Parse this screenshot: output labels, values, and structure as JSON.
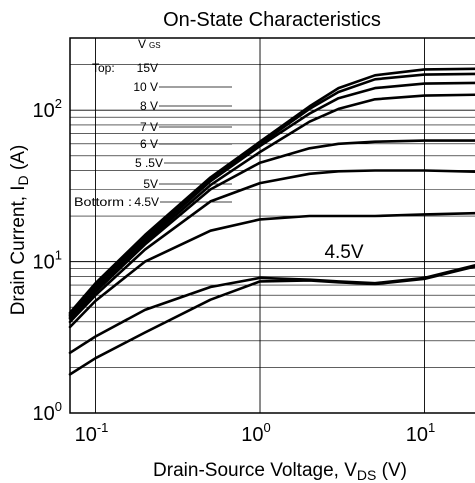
{
  "chart_data": {
    "type": "line",
    "title": "On-State Characteristics",
    "xlabel": {
      "main": "Drain-Source Voltage, V",
      "sub": "DS",
      "unit": " (V)"
    },
    "ylabel": {
      "main": "Drain Current, I",
      "sub": "D",
      "unit": " (A)"
    },
    "x_scale": "log",
    "y_scale": "log",
    "xlim": [
      0.07,
      25
    ],
    "ylim": [
      1,
      300
    ],
    "x_ticks": [
      {
        "value": 0.1,
        "base": "10",
        "exp": "-1"
      },
      {
        "value": 1,
        "base": "10",
        "exp": "0"
      },
      {
        "value": 10,
        "base": "10",
        "exp": "1"
      }
    ],
    "y_ticks": [
      {
        "value": 1,
        "base": "10",
        "exp": "0"
      },
      {
        "value": 10,
        "base": "10",
        "exp": "1"
      },
      {
        "value": 100,
        "base": "10",
        "exp": "2"
      }
    ],
    "grid": true,
    "legend": {
      "header_main": "V",
      "header_sub": "GS",
      "top_label": "Top:",
      "bottom_label": "Bottorm :",
      "entries": [
        "15V",
        "10 V",
        "8 V",
        "7 V",
        "6 V",
        "5 .5V",
        "5V",
        "4.5V"
      ]
    },
    "annotation": "4.5V",
    "series": [
      {
        "name": "15V",
        "x": [
          0.07,
          0.1,
          0.2,
          0.5,
          1,
          2,
          3,
          5,
          10,
          25
        ],
        "y": [
          4.6,
          7.2,
          15,
          36,
          62,
          106,
          140,
          170,
          186,
          188
        ]
      },
      {
        "name": "10 V",
        "x": [
          0.07,
          0.1,
          0.2,
          0.5,
          1,
          2,
          3,
          5,
          10,
          25
        ],
        "y": [
          4.5,
          7.0,
          14.5,
          35,
          60,
          102,
          132,
          160,
          172,
          174
        ]
      },
      {
        "name": "8 V",
        "x": [
          0.07,
          0.1,
          0.2,
          0.5,
          1,
          2,
          3,
          5,
          10,
          25
        ],
        "y": [
          4.4,
          6.8,
          14,
          34,
          58,
          95,
          120,
          140,
          150,
          152
        ]
      },
      {
        "name": "7 V",
        "x": [
          0.07,
          0.1,
          0.2,
          0.5,
          1,
          2,
          3,
          5,
          10,
          25
        ],
        "y": [
          4.3,
          6.6,
          13.5,
          32,
          53,
          84,
          102,
          118,
          125,
          127
        ]
      },
      {
        "name": "6 V",
        "x": [
          0.07,
          0.1,
          0.2,
          0.5,
          1,
          2,
          3,
          5,
          10,
          25
        ],
        "y": [
          4.2,
          6.3,
          13,
          30,
          45,
          56,
          60,
          62,
          63,
          63
        ]
      },
      {
        "name": "5 .5V",
        "x": [
          0.07,
          0.1,
          0.2,
          0.5,
          1,
          2,
          3,
          5,
          10,
          25
        ],
        "y": [
          4.0,
          6.0,
          12,
          25,
          33,
          38,
          39.5,
          40,
          40,
          39
        ]
      },
      {
        "name": "5V",
        "x": [
          0.07,
          0.1,
          0.2,
          0.5,
          1,
          2,
          3,
          5,
          10,
          25
        ],
        "y": [
          3.7,
          5.5,
          10,
          16,
          19,
          20,
          20,
          20,
          20.5,
          21
        ]
      },
      {
        "name": "4.5V",
        "x": [
          0.07,
          0.1,
          0.2,
          0.5,
          1,
          2,
          3,
          5,
          10,
          25
        ],
        "y": [
          2.5,
          3.2,
          4.8,
          6.8,
          7.8,
          7.6,
          7.4,
          7.2,
          7.8,
          10
        ]
      },
      {
        "name": "",
        "x": [
          0.07,
          0.1,
          0.2,
          0.5,
          1,
          2,
          3,
          5,
          10,
          25
        ],
        "y": [
          1.8,
          2.3,
          3.4,
          5.6,
          7.4,
          7.5,
          7.3,
          7.1,
          7.7,
          9.8
        ]
      }
    ]
  }
}
